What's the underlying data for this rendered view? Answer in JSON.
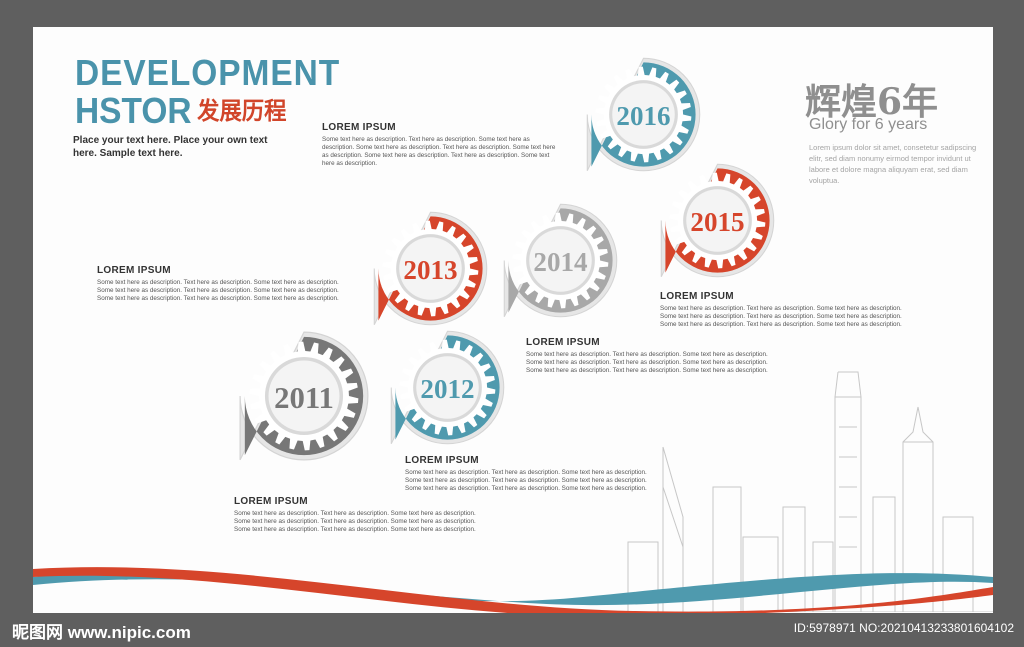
{
  "header": {
    "line1": "DEVELOPMENT",
    "line2": "HSTOR",
    "line2_cn": "发展历程",
    "tagline": "Place your  text here. Place your own text here. Sample text here."
  },
  "glory": {
    "cn": "辉煌6年",
    "en": "Glory for 6 years",
    "text": "Lorem ipsum dolor sit amet, consetetur sadipscing elitr, sed diam nonumy eirmod tempor invidunt ut labore et dolore magna aliquyam erat, sed diam voluptua."
  },
  "gears": [
    {
      "year": "2016",
      "color": "#4f9aae"
    },
    {
      "year": "2015",
      "color": "#d6452b"
    },
    {
      "year": "2014",
      "color": "#a8a8a8"
    },
    {
      "year": "2013",
      "color": "#d6452b"
    },
    {
      "year": "2012",
      "color": "#4f9aae"
    },
    {
      "year": "2011",
      "color": "#777777"
    }
  ],
  "blocks": [
    {
      "title": "LOREM IPSUM",
      "text": "Some text here as description. Text here as description. Some text here as description. Some text here as description. Text here as description. Some text here as description. Some text here as description. Text here as description. Some text here as description."
    },
    {
      "title": "LOREM IPSUM",
      "text": "Some text here as description. Text here as description. Some text here as description. Some text here as description. Text here as description. Some text here as description. Some text here as description. Text here as description. Some text here as description."
    },
    {
      "title": "LOREM IPSUM",
      "text": "Some text here as description. Text here as description. Some text here as description. Some text here as description. Text here as description. Some text here as description. Some text here as description. Text here as description. Some text here as description."
    },
    {
      "title": "LOREM IPSUM",
      "text": "Some text here as description. Text here as description. Some text here as description. Some text here as description. Text here as description. Some text here as description. Some text here as description. Text here as description. Some text here as description."
    },
    {
      "title": "LOREM IPSUM",
      "text": "Some text here as description. Text here as description. Some text here as description. Some text here as description. Text here as description. Some text here as description. Some text here as description. Text here as description. Some text here as description."
    },
    {
      "title": "LOREM IPSUM",
      "text": "Some text here as description. Text here as description. Some text here as description. Some text here as description. Text here as description. Some text here as description. Some text here as description. Text here as description. Some text here as description."
    }
  ],
  "watermark": {
    "left": "昵图网 www.nipic.com",
    "right": "ID:5978971 NO:20210413233801604102"
  },
  "colors": {
    "teal": "#4f9aae",
    "red": "#d6452b",
    "grey": "#9a9a9a"
  }
}
